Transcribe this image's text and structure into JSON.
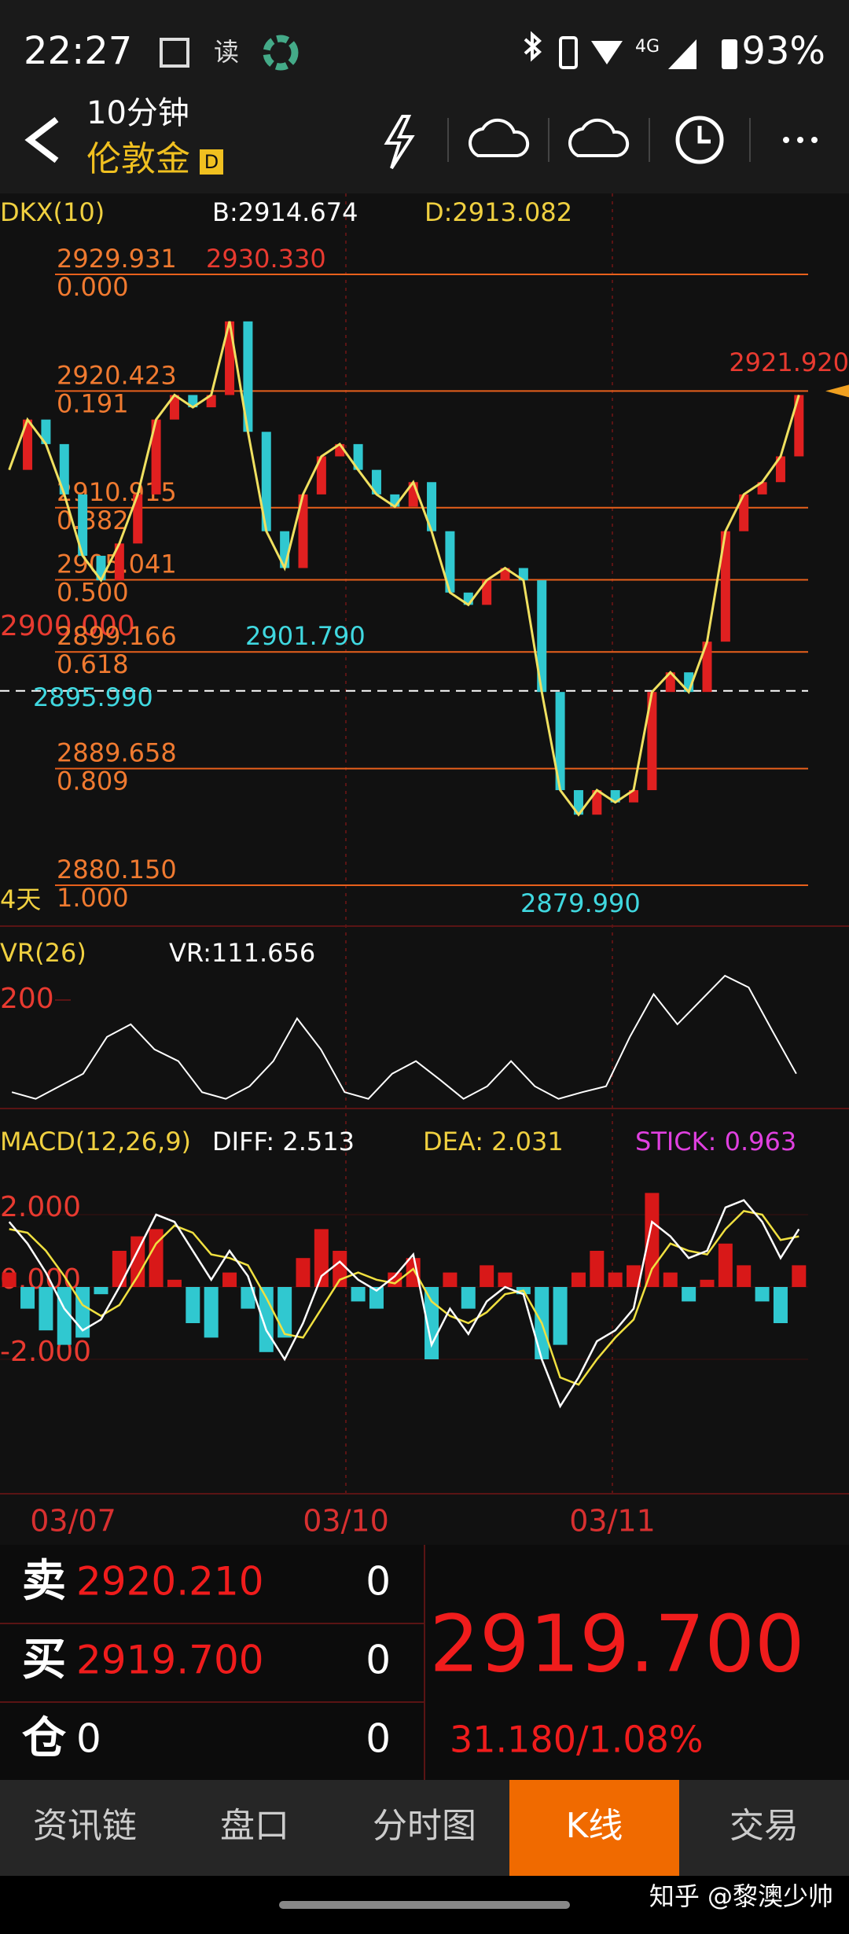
{
  "status_bar": {
    "time": "22:27",
    "read": "读",
    "network": "4G",
    "battery": "93%"
  },
  "header": {
    "period": "10分钟",
    "symbol": "伦敦金",
    "badge": "D"
  },
  "main_chart": {
    "indicator": "DKX(10)",
    "b": "B:2914.674",
    "d": "D:2913.082",
    "levels": [
      {
        "value": 2929.931,
        "label": "2929.931",
        "ratio": "0.000"
      },
      {
        "value": 2920.423,
        "label": "2920.423",
        "ratio": "0.191"
      },
      {
        "value": 2910.915,
        "label": "2910.915",
        "ratio": "0.382"
      },
      {
        "value": 2905.041,
        "label": "2905.041",
        "ratio": "0.500"
      },
      {
        "value": 2899.166,
        "label": "2899.166",
        "ratio": "0.618"
      },
      {
        "value": 2889.658,
        "label": "2889.658",
        "ratio": "0.809"
      },
      {
        "value": 2880.15,
        "label": "2880.150",
        "ratio": "1.000"
      }
    ],
    "high_label": "2930.330",
    "right_label": "2921.920",
    "left_label": "2900.000",
    "mid_label": "2901.790",
    "current_line": {
      "value": 2895.99,
      "label": "2895.990"
    },
    "low_label": "2879.990",
    "days": "4天",
    "close": [
      2914.0,
      2918.1,
      2916.1,
      2912.0,
      2907.0,
      2905.0,
      2908.0,
      2912.0,
      2918.1,
      2920.1,
      2919.1,
      2920.1,
      2926.1,
      2917.1,
      2909.0,
      2906.0,
      2912.0,
      2915.1,
      2916.1,
      2914.0,
      2912.0,
      2911.0,
      2913.0,
      2909.0,
      2904.0,
      2903.0,
      2905.0,
      2906.0,
      2905.0,
      2895.9,
      2887.9,
      2885.9,
      2887.9,
      2886.9,
      2887.9,
      2895.9,
      2897.5,
      2895.9,
      2900.0,
      2909.0,
      2912.0,
      2913.0,
      2915.1,
      2920.1
    ]
  },
  "vr": {
    "title": "VR(26)",
    "value": "VR:111.656",
    "yticks": [
      200
    ],
    "values": [
      90,
      82,
      97,
      112,
      156,
      171,
      141,
      127,
      90,
      82,
      97,
      127,
      178,
      141,
      90,
      82,
      112,
      127,
      105,
      82,
      97,
      127,
      97,
      82,
      90,
      97,
      156,
      207,
      171,
      200,
      229,
      215,
      163,
      112
    ]
  },
  "macd": {
    "title": "MACD(12,26,9)",
    "diff_label": "DIFF: 2.513",
    "dea_label": "DEA: 2.031",
    "stick_label": "STICK: 0.963",
    "yticks": [
      {
        "value": 2,
        "label": "2.000"
      },
      {
        "value": 0,
        "label": "0.000"
      },
      {
        "value": -2,
        "label": "-2.000"
      }
    ],
    "diff": [
      1.8,
      1.2,
      0.4,
      -0.6,
      -1.2,
      -0.9,
      0.0,
      1.0,
      2.0,
      1.8,
      1.0,
      0.2,
      1.0,
      0.3,
      -1.2,
      -2.0,
      -1.0,
      0.3,
      0.7,
      0.2,
      -0.1,
      0.3,
      0.9,
      -1.6,
      -0.6,
      -1.3,
      -0.4,
      0.0,
      -0.2,
      -2.0,
      -3.3,
      -2.5,
      -1.5,
      -1.2,
      -0.6,
      1.8,
      1.4,
      0.8,
      1.0,
      2.2,
      2.4,
      1.8,
      0.8,
      1.6
    ],
    "dea": [
      1.6,
      1.5,
      1.0,
      0.3,
      -0.5,
      -0.8,
      -0.5,
      0.3,
      1.2,
      1.7,
      1.5,
      0.9,
      0.8,
      0.6,
      -0.3,
      -1.3,
      -1.4,
      -0.6,
      0.2,
      0.4,
      0.2,
      0.1,
      0.5,
      -0.4,
      -0.8,
      -1.0,
      -0.7,
      -0.2,
      -0.1,
      -1.0,
      -2.5,
      -2.7,
      -2.0,
      -1.4,
      -0.9,
      0.5,
      1.2,
      1.0,
      0.9,
      1.6,
      2.1,
      2.0,
      1.3,
      1.4
    ],
    "stick": [
      0.4,
      -0.6,
      -1.2,
      -1.6,
      -1.4,
      -0.2,
      1.0,
      1.4,
      1.6,
      0.2,
      -1.0,
      -1.4,
      0.4,
      -0.6,
      -1.8,
      -1.4,
      0.8,
      1.6,
      1.0,
      -0.4,
      -0.6,
      0.4,
      0.8,
      -2.0,
      0.4,
      -0.6,
      0.6,
      0.4,
      -0.2,
      -2.0,
      -1.6,
      0.4,
      1.0,
      0.4,
      0.6,
      2.6,
      0.4,
      -0.4,
      0.2,
      1.2,
      0.6,
      -0.4,
      -1.0,
      0.6
    ]
  },
  "dates": [
    "03/07",
    "03/10",
    "03/11"
  ],
  "quote": {
    "rows": [
      {
        "label": "卖",
        "price": "2920.210",
        "qty": "0"
      },
      {
        "label": "买",
        "price": "2919.700",
        "qty": "0"
      },
      {
        "label": "仓",
        "price": "0",
        "qty": "0"
      }
    ],
    "last": "2919.700",
    "change": "31.180/1.08%"
  },
  "tabs": [
    "资讯链",
    "盘口",
    "分时图",
    "K线",
    "交易"
  ],
  "active_tab": 3,
  "watermark": "知乎 @黎澳少帅"
}
